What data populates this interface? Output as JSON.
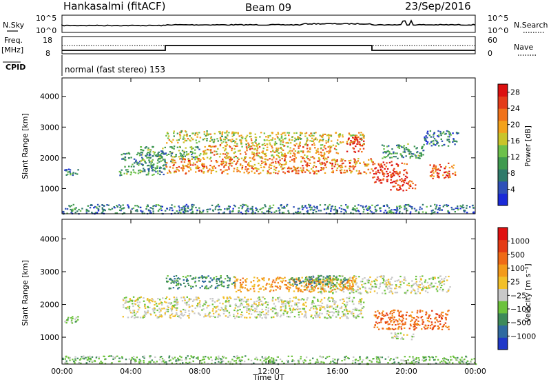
{
  "header": {
    "station": "Hankasalmi (fitACF)",
    "beam": "Beam 09",
    "date": "23/Sep/2016"
  },
  "top_panels": {
    "nsky_label": "N.Sky",
    "nsearch_label": "N.Search",
    "noise_ticks": [
      "10^5",
      "10^0"
    ],
    "freq_label": "Freq.",
    "freq_unit": "[MHz]",
    "freq_ticks": [
      "18",
      "8"
    ],
    "nave_label": "Nave",
    "nave_ticks": [
      "60",
      "0"
    ],
    "cpid_label": "CPID",
    "cpid_text": "normal (fast stereo) 153"
  },
  "chart_data": [
    {
      "type": "heatmap",
      "name": "power",
      "xlabel": "",
      "ylabel": "Slant Range [km]",
      "x_ticks": [
        "00:00",
        "04:00",
        "08:00",
        "12:00",
        "16:00",
        "20:00",
        "00:00"
      ],
      "y_ticks": [
        1000,
        2000,
        3000,
        4000
      ],
      "ylim": [
        180,
        4600
      ],
      "xlim_hours": [
        0,
        24
      ],
      "colorbar": {
        "label": "Power [dB]",
        "ticks": [
          4,
          8,
          12,
          16,
          20,
          24,
          28
        ],
        "range": [
          0,
          30
        ],
        "colors": [
          "#1a2ad8",
          "#2f50b8",
          "#2f7a6a",
          "#3f9a4f",
          "#6cc04a",
          "#c9c42a",
          "#f3a21c",
          "#f0721a",
          "#e43c1a",
          "#dc1010"
        ]
      },
      "scatter_regions": [
        {
          "t": [
            0.1,
            0.9
          ],
          "r": [
            1450,
            1650
          ],
          "v": 6
        },
        {
          "t": [
            3.3,
            6.0
          ],
          "r": [
            1450,
            2200
          ],
          "v": 8
        },
        {
          "t": [
            4.5,
            8.0
          ],
          "r": [
            1900,
            2400
          ],
          "v": 10
        },
        {
          "t": [
            6.0,
            10.0
          ],
          "r": [
            2500,
            2900
          ],
          "v": 14
        },
        {
          "t": [
            6.0,
            18.0
          ],
          "r": [
            1500,
            2000
          ],
          "v": 20
        },
        {
          "t": [
            8.0,
            16.0
          ],
          "r": [
            2000,
            2450
          ],
          "v": 18
        },
        {
          "t": [
            10.0,
            17.5
          ],
          "r": [
            2450,
            2850
          ],
          "v": 15
        },
        {
          "t": [
            16.5,
            17.5
          ],
          "r": [
            2200,
            2700
          ],
          "v": 26
        },
        {
          "t": [
            18.0,
            20.0
          ],
          "r": [
            1200,
            1900
          ],
          "v": 25
        },
        {
          "t": [
            19.0,
            20.5
          ],
          "r": [
            950,
            1300
          ],
          "v": 24
        },
        {
          "t": [
            18.5,
            21.0
          ],
          "r": [
            2000,
            2500
          ],
          "v": 8
        },
        {
          "t": [
            21.0,
            23.0
          ],
          "r": [
            2400,
            2900
          ],
          "v": 6
        },
        {
          "t": [
            21.3,
            22.8
          ],
          "r": [
            1350,
            1850
          ],
          "v": 22
        },
        {
          "t": [
            0.0,
            24.0
          ],
          "r": [
            200,
            500
          ],
          "v": 6
        }
      ]
    },
    {
      "type": "heatmap",
      "name": "velocity",
      "xlabel": "Time UT",
      "ylabel": "Slant Range [km]",
      "x_ticks": [
        "00:00",
        "04:00",
        "08:00",
        "12:00",
        "16:00",
        "20:00",
        "00:00"
      ],
      "y_ticks": [
        1000,
        2000,
        3000,
        4000
      ],
      "ylim": [
        180,
        4600
      ],
      "xlim_hours": [
        0,
        24
      ],
      "colorbar": {
        "label": "Velocity [m s⁻¹]",
        "ticks": [
          "1000",
          "500",
          "100",
          "25",
          "−25",
          "−100",
          "−500",
          "−1000"
        ],
        "colors": [
          "#2038c8",
          "#2f6aa0",
          "#3d8a5a",
          "#6cc23c",
          "#c8c8c8",
          "#f2c02a",
          "#f39a1a",
          "#ef6a16",
          "#e43a14",
          "#e01010"
        ]
      },
      "scatter_regions": [
        {
          "t": [
            0.1,
            0.9
          ],
          "r": [
            1450,
            1650
          ],
          "v": 3
        },
        {
          "t": [
            3.5,
            17.5
          ],
          "r": [
            1600,
            2250
          ],
          "v": 4
        },
        {
          "t": [
            14.0,
            22.5
          ],
          "r": [
            2350,
            2900
          ],
          "v": 4
        },
        {
          "t": [
            6.0,
            10.0
          ],
          "r": [
            2500,
            2900
          ],
          "v": 2
        },
        {
          "t": [
            10.0,
            17.0
          ],
          "r": [
            2400,
            2850
          ],
          "v": 6
        },
        {
          "t": [
            13.0,
            16.5
          ],
          "r": [
            2600,
            2900
          ],
          "v": 2
        },
        {
          "t": [
            18.0,
            22.5
          ],
          "r": [
            1250,
            1850
          ],
          "v": 7
        },
        {
          "t": [
            19.0,
            20.5
          ],
          "r": [
            950,
            1150
          ],
          "v": 4
        },
        {
          "t": [
            0.0,
            24.0
          ],
          "r": [
            200,
            450
          ],
          "v": 3
        }
      ]
    }
  ]
}
